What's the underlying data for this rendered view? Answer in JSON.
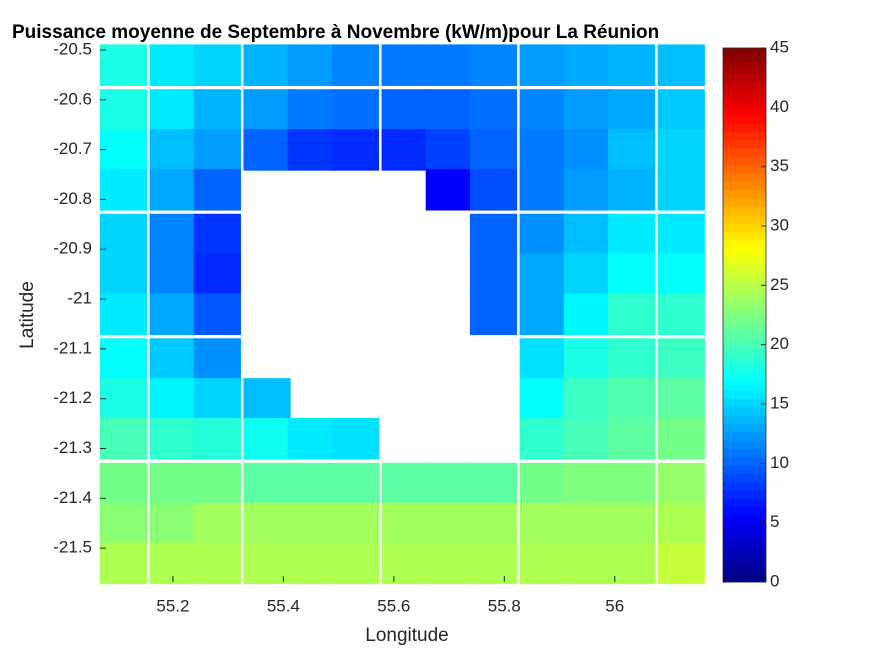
{
  "chart_data": {
    "type": "heatmap",
    "title": "Puissance moyenne de Septembre à Novembre (kW/m)pour La Réunion",
    "x_label": "Longitude",
    "y_label": "Latitude",
    "x": [
      55.11,
      55.2,
      55.28,
      55.37,
      55.45,
      55.53,
      55.62,
      55.7,
      55.78,
      55.87,
      55.95,
      56.03,
      56.12
    ],
    "y": [
      -20.53,
      -20.62,
      -20.7,
      -20.78,
      -20.87,
      -20.95,
      -21.03,
      -21.12,
      -21.2,
      -21.28,
      -21.37,
      -21.45,
      -21.53
    ],
    "xlim": [
      55.068,
      56.167
    ],
    "ylim": [
      -21.568,
      -20.496
    ],
    "xticks": [
      55.2,
      55.4,
      55.6,
      55.8,
      56
    ],
    "yticks": [
      -20.5,
      -20.6,
      -20.7,
      -20.8,
      -20.9,
      -21,
      -21.1,
      -21.2,
      -21.3,
      -21.4,
      -21.5
    ],
    "values": [
      [
        18,
        16,
        15,
        13.5,
        12.5,
        11.5,
        11,
        11,
        11.5,
        12.5,
        13,
        13.5,
        14
      ],
      [
        18,
        16,
        13.5,
        12.5,
        11,
        10.5,
        10,
        10,
        10.5,
        11.5,
        12.5,
        13,
        14.5
      ],
      [
        17,
        14,
        12.5,
        10,
        8,
        7.5,
        7.5,
        8.5,
        10,
        11,
        12,
        14,
        15
      ],
      [
        16,
        13,
        10,
        null,
        null,
        null,
        null,
        5.5,
        9,
        11,
        12.5,
        13.5,
        15
      ],
      [
        15,
        11.5,
        8,
        null,
        null,
        null,
        null,
        null,
        10,
        12,
        14,
        16,
        16
      ],
      [
        15,
        11.5,
        7.5,
        null,
        null,
        null,
        null,
        null,
        10,
        13,
        15,
        17,
        17
      ],
      [
        16,
        13,
        9.5,
        null,
        null,
        null,
        null,
        null,
        10,
        13,
        16.5,
        19,
        19
      ],
      [
        17,
        14.5,
        12,
        null,
        null,
        null,
        null,
        null,
        null,
        15.5,
        18,
        19,
        19.5
      ],
      [
        18,
        16.5,
        15,
        14,
        null,
        null,
        null,
        null,
        null,
        17,
        19.5,
        20.5,
        21
      ],
      [
        20,
        19,
        18.5,
        17.5,
        16,
        15.5,
        null,
        null,
        null,
        19,
        20,
        21,
        22
      ],
      [
        22,
        22,
        22,
        21,
        21,
        21,
        21,
        21,
        21,
        22,
        22.5,
        22.5,
        23.5
      ],
      [
        23,
        23,
        24,
        24,
        24,
        24,
        24,
        24,
        24,
        24,
        24,
        24,
        24.5
      ],
      [
        24.5,
        24.5,
        24.5,
        24.5,
        24.5,
        24.5,
        24.5,
        24.5,
        24.5,
        24.5,
        24.5,
        24.5,
        25.5
      ]
    ],
    "colormap": "jet",
    "clim": [
      0,
      45
    ],
    "colorbar_ticks": [
      0,
      5,
      10,
      15,
      20,
      25,
      30,
      35,
      40,
      45
    ]
  }
}
